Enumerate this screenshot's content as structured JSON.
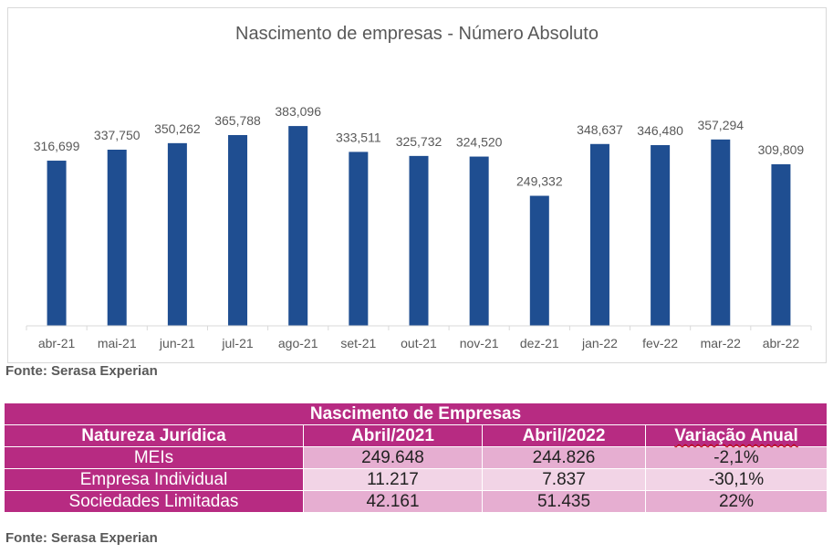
{
  "chart_data": {
    "type": "bar",
    "title": "Nascimento de empresas - Número Absoluto",
    "categories": [
      "abr-21",
      "mai-21",
      "jun-21",
      "jul-21",
      "ago-21",
      "set-21",
      "out-21",
      "nov-21",
      "dez-21",
      "jan-22",
      "fev-22",
      "mar-22",
      "abr-22"
    ],
    "values": [
      316699,
      337750,
      350262,
      365788,
      383096,
      333511,
      325732,
      324520,
      249332,
      348637,
      346480,
      357294,
      309809
    ],
    "value_labels": [
      "316,699",
      "337,750",
      "350,262",
      "365,788",
      "383,096",
      "333,511",
      "325,732",
      "324,520",
      "249,332",
      "348,637",
      "346,480",
      "357,294",
      "309,809"
    ],
    "ylim": [
      0,
      420000
    ],
    "grid": false,
    "legend": "none",
    "bar_color": "#1f4e91"
  },
  "source_chart": "Fonte: Serasa Experian",
  "table": {
    "title": "Nascimento de Empresas",
    "headers": [
      "Natureza Jurídica",
      "Abril/2021",
      "Abril/2022",
      "Variação Anual"
    ],
    "rows": [
      {
        "label": "MEIs",
        "values": [
          "249.648",
          "244.826",
          "-2,1%"
        ]
      },
      {
        "label": "Empresa Individual",
        "values": [
          "11.217",
          "7.837",
          "-30,1%"
        ]
      },
      {
        "label": "Sociedades Limitadas",
        "values": [
          "42.161",
          "51.435",
          "22%"
        ]
      }
    ],
    "colors": {
      "header": "#b72b82",
      "row_dark": "#e6aed1",
      "row_light": "#f2d4e6"
    }
  },
  "source_table": "Fonte: Serasa Experian"
}
